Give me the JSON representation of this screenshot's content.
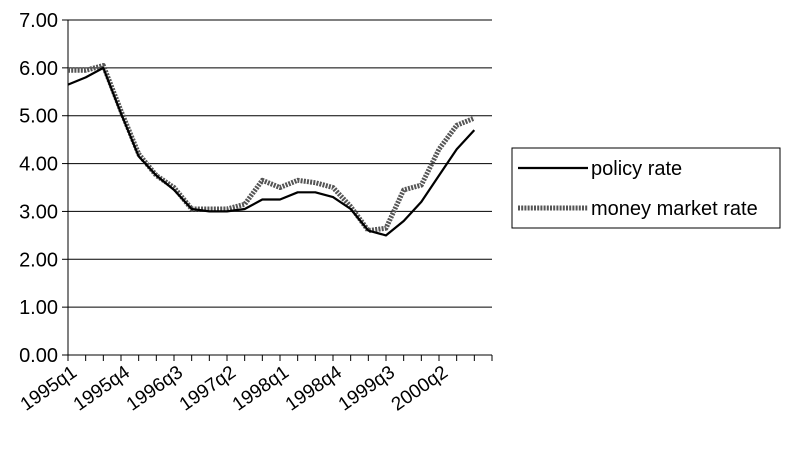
{
  "chart_data": {
    "type": "line",
    "title": "",
    "xlabel": "",
    "ylabel": "",
    "ylim": [
      0,
      7
    ],
    "y_ticks": [
      "0.00",
      "1.00",
      "2.00",
      "3.00",
      "4.00",
      "5.00",
      "6.00",
      "7.00"
    ],
    "x": [
      "1995q1",
      "1995q2",
      "1995q3",
      "1995q4",
      "1996q1",
      "1996q2",
      "1996q3",
      "1996q4",
      "1997q1",
      "1997q2",
      "1997q3",
      "1997q4",
      "1998q1",
      "1998q2",
      "1998q3",
      "1998q4",
      "1999q1",
      "1999q2",
      "1999q3",
      "1999q4",
      "2000q1",
      "2000q2",
      "2000q3",
      "2000q4",
      "2001q1"
    ],
    "x_tick_labels": [
      "1995q1",
      "1995q4",
      "1996q3",
      "1997q2",
      "1998q1",
      "1998q4",
      "1999q3",
      "2000q2"
    ],
    "grid": "horizontal",
    "legend_position": "right",
    "series": [
      {
        "name": "policy rate",
        "color": "#000000",
        "style": "solid",
        "values": [
          5.65,
          5.8,
          6.0,
          5.05,
          4.15,
          3.75,
          3.45,
          3.05,
          3.0,
          3.0,
          3.05,
          3.25,
          3.25,
          3.4,
          3.4,
          3.3,
          3.05,
          2.6,
          2.5,
          2.8,
          3.2,
          3.75,
          4.3,
          4.7,
          null
        ]
      },
      {
        "name": "money market rate",
        "color": "#555555",
        "style": "thick-dashed",
        "values": [
          5.95,
          5.95,
          6.05,
          5.1,
          4.2,
          3.75,
          3.5,
          3.05,
          3.05,
          3.05,
          3.15,
          3.65,
          3.5,
          3.65,
          3.6,
          3.5,
          3.1,
          2.6,
          2.65,
          3.45,
          3.55,
          4.3,
          4.8,
          4.95,
          null
        ]
      }
    ]
  }
}
